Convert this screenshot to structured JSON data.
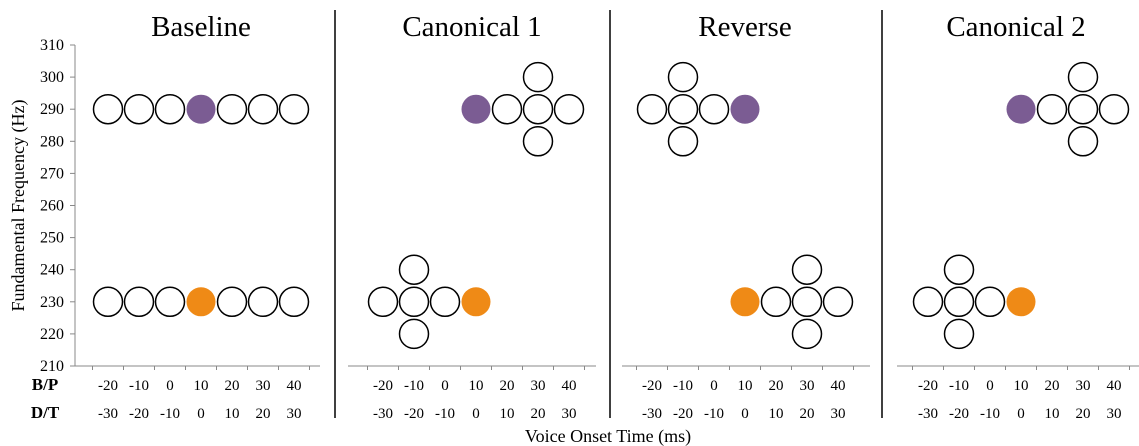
{
  "chart_data": {
    "type": "scatter",
    "xlabel": "Voice Onset Time (ms)",
    "ylabel": "Fundamental Frequency (Hz)",
    "ylim": [
      210,
      310
    ],
    "yticks": [
      210,
      220,
      230,
      240,
      250,
      260,
      270,
      280,
      290,
      300,
      310
    ],
    "row_labels": [
      "B/P",
      "D/T"
    ],
    "colors": {
      "purple": "#7b5c93",
      "orange": "#ef8a16",
      "open": "#ffffff",
      "stroke": "#000000"
    },
    "panels": [
      {
        "title": "Baseline",
        "xticks_bp": [
          "-20",
          "-10",
          "0",
          "10",
          "20",
          "30",
          "40"
        ],
        "xticks_dt": [
          "-30",
          "-20",
          "-10",
          "0",
          "10",
          "20",
          "30"
        ],
        "points": [
          {
            "x": -20,
            "y": 290,
            "fill": "open"
          },
          {
            "x": -10,
            "y": 290,
            "fill": "open"
          },
          {
            "x": 0,
            "y": 290,
            "fill": "open"
          },
          {
            "x": 10,
            "y": 290,
            "fill": "purple"
          },
          {
            "x": 20,
            "y": 290,
            "fill": "open"
          },
          {
            "x": 30,
            "y": 290,
            "fill": "open"
          },
          {
            "x": 40,
            "y": 290,
            "fill": "open"
          },
          {
            "x": -20,
            "y": 230,
            "fill": "open"
          },
          {
            "x": -10,
            "y": 230,
            "fill": "open"
          },
          {
            "x": 0,
            "y": 230,
            "fill": "open"
          },
          {
            "x": 10,
            "y": 230,
            "fill": "orange"
          },
          {
            "x": 20,
            "y": 230,
            "fill": "open"
          },
          {
            "x": 30,
            "y": 230,
            "fill": "open"
          },
          {
            "x": 40,
            "y": 230,
            "fill": "open"
          }
        ]
      },
      {
        "title": "Canonical 1",
        "xticks_bp": [
          "-20",
          "-10",
          "0",
          "10",
          "20",
          "30",
          "40"
        ],
        "xticks_dt": [
          "-30",
          "-20",
          "-10",
          "0",
          "10",
          "20",
          "30"
        ],
        "points": [
          {
            "x": 10,
            "y": 290,
            "fill": "purple"
          },
          {
            "x": 20,
            "y": 290,
            "fill": "open"
          },
          {
            "x": 30,
            "y": 290,
            "fill": "open"
          },
          {
            "x": 40,
            "y": 290,
            "fill": "open"
          },
          {
            "x": 30,
            "y": 300,
            "fill": "open"
          },
          {
            "x": 30,
            "y": 280,
            "fill": "open"
          },
          {
            "x": -20,
            "y": 230,
            "fill": "open"
          },
          {
            "x": -10,
            "y": 230,
            "fill": "open"
          },
          {
            "x": 0,
            "y": 230,
            "fill": "open"
          },
          {
            "x": -10,
            "y": 240,
            "fill": "open"
          },
          {
            "x": -10,
            "y": 220,
            "fill": "open"
          },
          {
            "x": 10,
            "y": 230,
            "fill": "orange"
          }
        ]
      },
      {
        "title": "Reverse",
        "xticks_bp": [
          "-20",
          "-10",
          "0",
          "10",
          "20",
          "30",
          "40"
        ],
        "xticks_dt": [
          "-30",
          "-20",
          "-10",
          "0",
          "10",
          "20",
          "30"
        ],
        "points": [
          {
            "x": -20,
            "y": 290,
            "fill": "open"
          },
          {
            "x": -10,
            "y": 290,
            "fill": "open"
          },
          {
            "x": 0,
            "y": 290,
            "fill": "open"
          },
          {
            "x": -10,
            "y": 300,
            "fill": "open"
          },
          {
            "x": -10,
            "y": 280,
            "fill": "open"
          },
          {
            "x": 10,
            "y": 290,
            "fill": "purple"
          },
          {
            "x": 10,
            "y": 230,
            "fill": "orange"
          },
          {
            "x": 20,
            "y": 230,
            "fill": "open"
          },
          {
            "x": 30,
            "y": 230,
            "fill": "open"
          },
          {
            "x": 40,
            "y": 230,
            "fill": "open"
          },
          {
            "x": 30,
            "y": 240,
            "fill": "open"
          },
          {
            "x": 30,
            "y": 220,
            "fill": "open"
          }
        ]
      },
      {
        "title": "Canonical 2",
        "xticks_bp": [
          "-20",
          "-10",
          "0",
          "10",
          "20",
          "30",
          "40"
        ],
        "xticks_dt": [
          "-30",
          "-20",
          "-10",
          "0",
          "10",
          "20",
          "30"
        ],
        "points": [
          {
            "x": 10,
            "y": 290,
            "fill": "purple"
          },
          {
            "x": 20,
            "y": 290,
            "fill": "open"
          },
          {
            "x": 30,
            "y": 290,
            "fill": "open"
          },
          {
            "x": 40,
            "y": 290,
            "fill": "open"
          },
          {
            "x": 30,
            "y": 300,
            "fill": "open"
          },
          {
            "x": 30,
            "y": 280,
            "fill": "open"
          },
          {
            "x": -20,
            "y": 230,
            "fill": "open"
          },
          {
            "x": -10,
            "y": 230,
            "fill": "open"
          },
          {
            "x": 0,
            "y": 230,
            "fill": "open"
          },
          {
            "x": -10,
            "y": 240,
            "fill": "open"
          },
          {
            "x": -10,
            "y": 220,
            "fill": "open"
          },
          {
            "x": 10,
            "y": 230,
            "fill": "orange"
          }
        ]
      }
    ]
  }
}
